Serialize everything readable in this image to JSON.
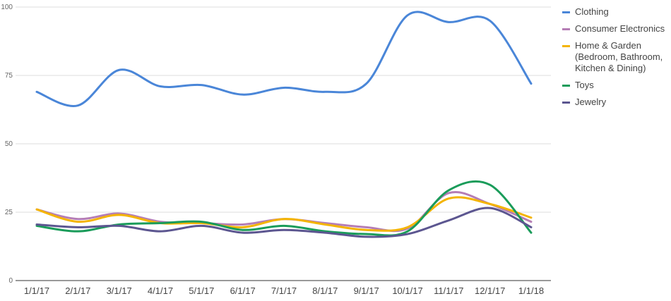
{
  "chart_data": {
    "type": "line",
    "categories": [
      "1/1/17",
      "2/1/17",
      "3/1/17",
      "4/1/17",
      "5/1/17",
      "6/1/17",
      "7/1/17",
      "8/1/17",
      "9/1/17",
      "10/1/17",
      "11/1/17",
      "12/1/17",
      "1/1/18"
    ],
    "series": [
      {
        "name": "Clothing",
        "color": "#4a86d8",
        "values": [
          69,
          64,
          77,
          71,
          71.5,
          68,
          70.5,
          69,
          72,
          97,
          94.5,
          95,
          72
        ]
      },
      {
        "name": "Consumer Electronics",
        "color": "#b57db5",
        "values": [
          26,
          22.5,
          24.5,
          21.5,
          21,
          20.5,
          22.5,
          21,
          19.5,
          19,
          32,
          28,
          21.5
        ]
      },
      {
        "name": "Home & Garden (Bedroom, Bathroom, Kitchen & Dining)",
        "color": "#f4b400",
        "values": [
          26,
          21.5,
          24,
          21,
          21,
          19.5,
          22.5,
          20.5,
          18.5,
          19.5,
          30,
          28,
          23
        ]
      },
      {
        "name": "Toys",
        "color": "#1a9c5a",
        "values": [
          20,
          18,
          20.5,
          21,
          21.5,
          18.5,
          20,
          18,
          17,
          18,
          33,
          35,
          17.5
        ]
      },
      {
        "name": "Jewelry",
        "color": "#5c5690",
        "values": [
          20.5,
          19.5,
          20,
          18,
          20,
          17.5,
          18.5,
          17.5,
          16,
          17,
          22,
          26.5,
          19.5
        ]
      }
    ],
    "ylim": [
      0,
      100
    ],
    "yticks": [
      0,
      25,
      50,
      75,
      100
    ],
    "grid": true,
    "legend": "right"
  }
}
